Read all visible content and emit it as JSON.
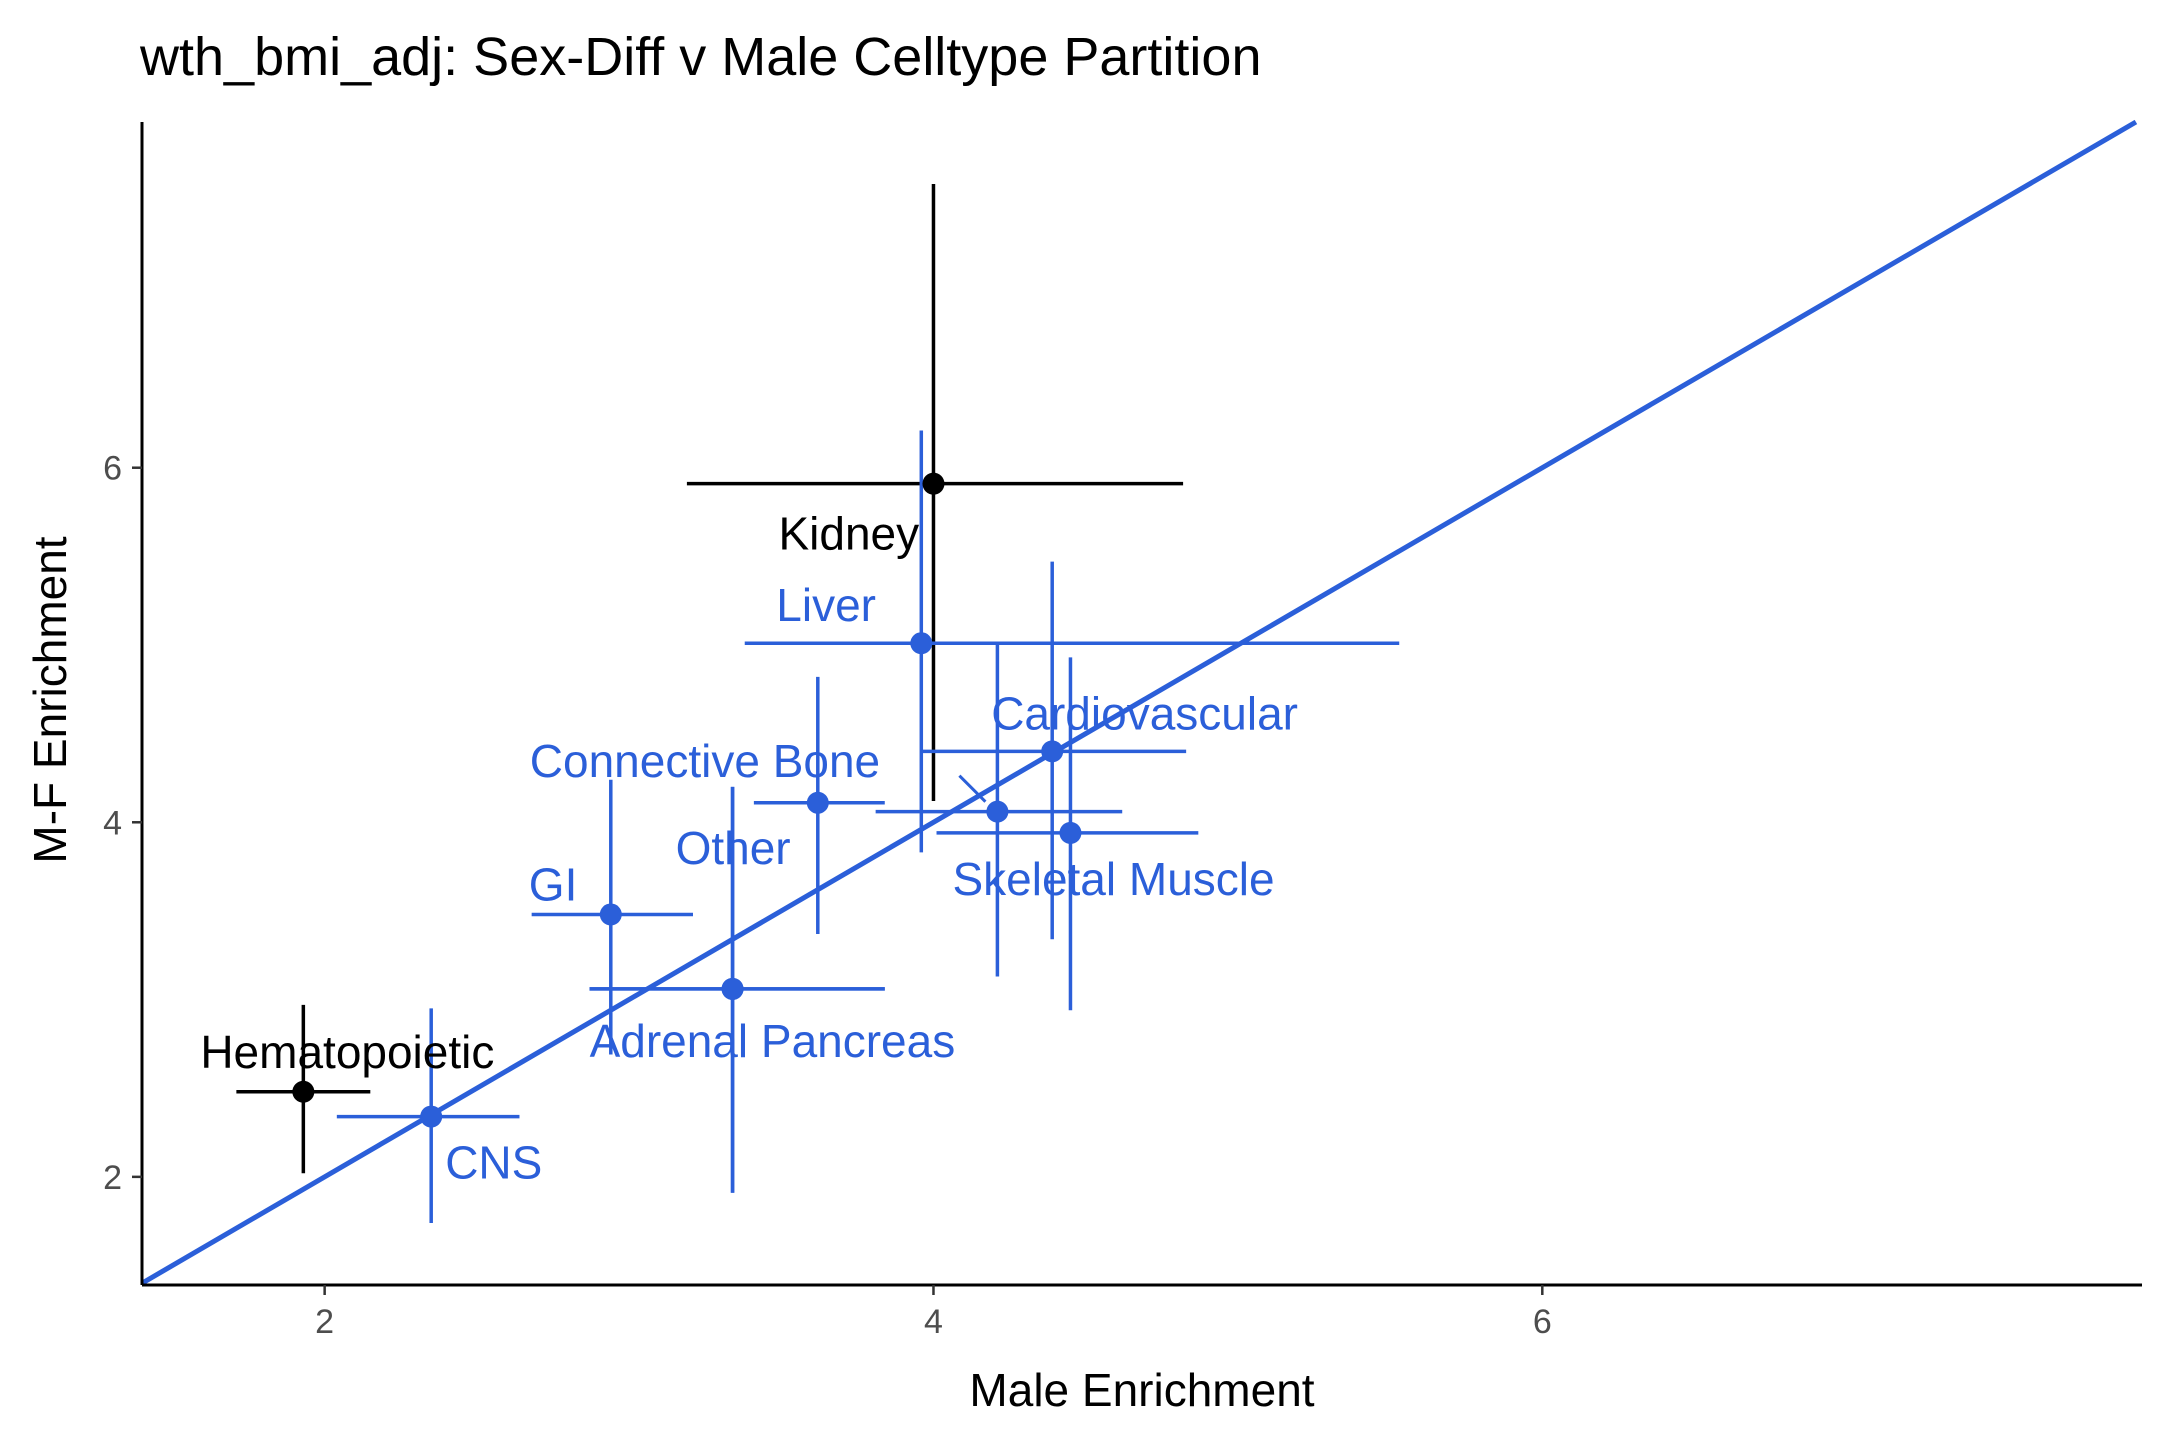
{
  "chart_data": {
    "type": "scatter",
    "title": "wth_bmi_adj: Sex-Diff v Male Celltype Partition",
    "xlabel": "Male Enrichment",
    "ylabel": "M-F Enrichment",
    "xlim": [
      1.4,
      7.97
    ],
    "ylim": [
      1.39,
      7.95
    ],
    "x_ticks": [
      "2",
      "4",
      "6"
    ],
    "y_ticks": [
      "2",
      "4",
      "6"
    ],
    "grid": false,
    "legend": "none",
    "reference_line": {
      "slope": 1,
      "intercept": 0,
      "color": "#2b5fd9"
    },
    "colors": {
      "significant": "#000000",
      "not_significant": "#2b5fd9"
    },
    "points": [
      {
        "label": "Kidney",
        "x": 4.0,
        "y": 5.91,
        "x_err": [
          3.19,
          4.82
        ],
        "y_err": [
          4.12,
          7.6
        ],
        "color": "#000000"
      },
      {
        "label": "Liver",
        "x": 3.96,
        "y": 5.01,
        "x_err": [
          3.38,
          5.53
        ],
        "y_err": [
          3.83,
          6.21
        ],
        "color": "#2b5fd9"
      },
      {
        "label": "Cardiovascular",
        "x": 4.39,
        "y": 4.4,
        "x_err": [
          3.96,
          4.83
        ],
        "y_err": [
          3.34,
          5.47
        ],
        "color": "#2b5fd9"
      },
      {
        "label": "Connective Bone",
        "x": 3.62,
        "y": 4.11,
        "x_err": [
          3.41,
          3.84
        ],
        "y_err": [
          3.37,
          4.82
        ],
        "color": "#2b5fd9"
      },
      {
        "label": "Skeletal Muscle",
        "x": 4.45,
        "y": 3.94,
        "x_err": [
          4.01,
          4.87
        ],
        "y_err": [
          2.94,
          4.93
        ],
        "color": "#2b5fd9"
      },
      {
        "label": "",
        "x": 4.21,
        "y": 4.06,
        "x_err": [
          3.81,
          4.62
        ],
        "y_err": [
          3.13,
          5.0
        ],
        "color": "#2b5fd9"
      },
      {
        "label": "Other",
        "x": 3.34,
        "y": 3.06,
        "x_err": [
          2.87,
          3.84
        ],
        "y_err": [
          1.91,
          4.2
        ],
        "color": "#2b5fd9"
      },
      {
        "label": "GI",
        "x": 2.94,
        "y": 3.48,
        "x_err": [
          2.68,
          3.21
        ],
        "y_err": [
          2.69,
          4.24
        ],
        "color": "#2b5fd9"
      },
      {
        "label": "Adrenal Pancreas",
        "x": 3.34,
        "y": 3.06,
        "x_err": [
          2.87,
          3.84
        ],
        "y_err": [
          1.91,
          4.2
        ],
        "color": "#2b5fd9"
      },
      {
        "label": "Hematopoietic",
        "x": 1.93,
        "y": 2.48,
        "x_err": [
          1.71,
          2.15
        ],
        "y_err": [
          2.02,
          2.97
        ],
        "color": "#000000"
      },
      {
        "label": "CNS",
        "x": 2.35,
        "y": 2.34,
        "x_err": [
          2.04,
          2.64
        ],
        "y_err": [
          1.74,
          2.95
        ],
        "color": "#2b5fd9"
      }
    ]
  }
}
